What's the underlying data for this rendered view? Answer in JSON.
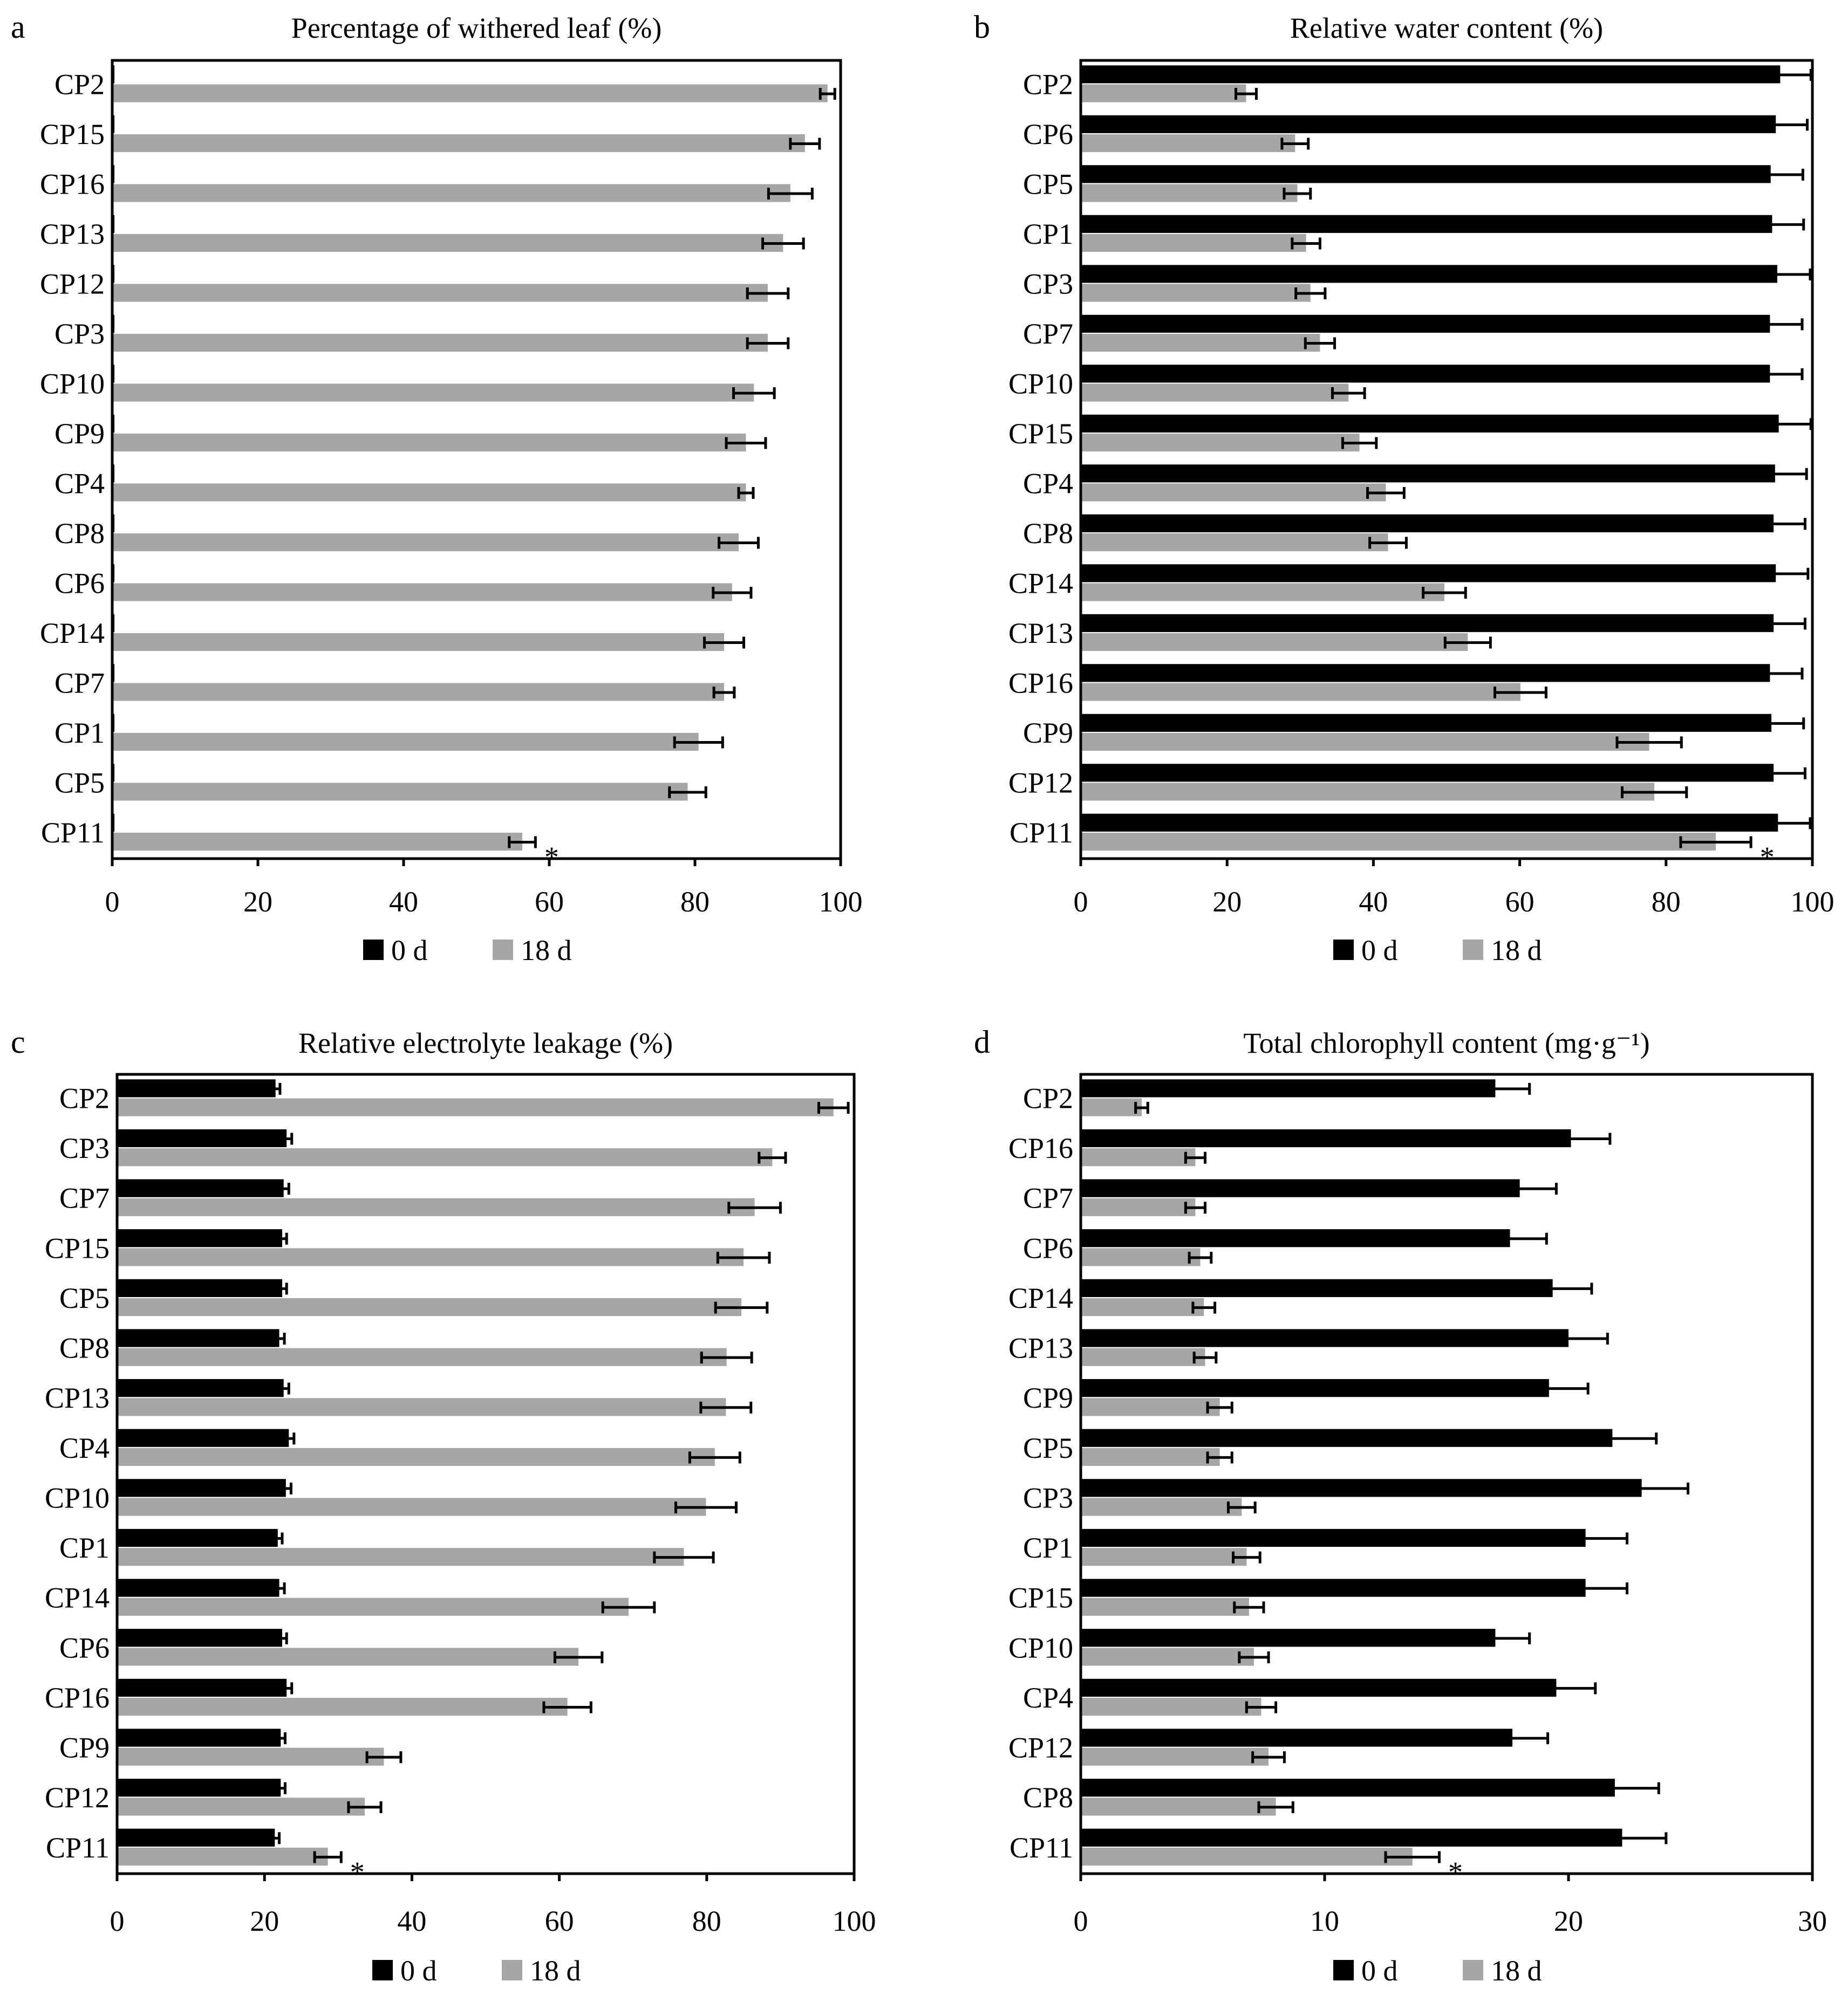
{
  "colors": {
    "day0": "#000000",
    "day18": "#a6a6a6"
  },
  "chart_data": [
    {
      "type": "bar",
      "orientation": "horizontal",
      "panel": "a",
      "title": "Percentage of withered leaf (%)",
      "xlim": [
        0,
        100
      ],
      "xticks": [
        0,
        20,
        40,
        60,
        80,
        100
      ],
      "legend": [
        "0 d",
        "18 d"
      ],
      "legend_position": "bottom",
      "categories": [
        "CP2",
        "CP15",
        "CP16",
        "CP13",
        "CP12",
        "CP3",
        "CP10",
        "CP9",
        "CP4",
        "CP8",
        "CP6",
        "CP14",
        "CP7",
        "CP1",
        "CP5",
        "CP11"
      ],
      "series": [
        {
          "name": "0 d",
          "values": [
            0.3,
            0.3,
            0.3,
            0.3,
            0.3,
            0.3,
            0.3,
            0.3,
            0.3,
            0.3,
            0.3,
            0.3,
            0.3,
            0.3,
            0.3,
            0.3
          ],
          "errors": [
            0,
            0,
            0,
            0,
            0,
            0,
            0,
            0,
            0,
            0,
            0,
            0,
            0,
            0,
            0,
            0
          ]
        },
        {
          "name": "18 d",
          "values": [
            98.2,
            95.1,
            93.1,
            92.1,
            90.0,
            90.0,
            88.1,
            87.0,
            87.0,
            86.0,
            85.1,
            84.0,
            84.0,
            80.5,
            79.0,
            56.3
          ],
          "errors": [
            1.0,
            2.0,
            3.0,
            2.8,
            2.8,
            2.8,
            2.8,
            2.7,
            1.0,
            2.7,
            2.6,
            2.7,
            1.4,
            3.3,
            2.5,
            1.8
          ]
        }
      ],
      "annotation": {
        "category": "CP11",
        "series": "18 d",
        "text": "*"
      }
    },
    {
      "type": "bar",
      "orientation": "horizontal",
      "panel": "b",
      "title": "Relative water content (%)",
      "xlim": [
        0,
        100
      ],
      "xticks": [
        0,
        20,
        40,
        60,
        80,
        100
      ],
      "legend": [
        "0 d",
        "18 d"
      ],
      "legend_position": "bottom",
      "categories": [
        "CP2",
        "CP6",
        "CP5",
        "CP1",
        "CP3",
        "CP7",
        "CP10",
        "CP15",
        "CP4",
        "CP8",
        "CP14",
        "CP13",
        "CP16",
        "CP9",
        "CP12",
        "CP11"
      ],
      "series": [
        {
          "name": "0 d",
          "values": [
            95.6,
            95.0,
            94.3,
            94.5,
            95.2,
            94.2,
            94.2,
            95.4,
            94.9,
            94.7,
            95.0,
            94.7,
            94.2,
            94.4,
            94.7,
            95.3
          ],
          "errors": [
            4.2,
            4.3,
            4.4,
            4.3,
            4.5,
            4.4,
            4.4,
            4.4,
            4.3,
            4.3,
            4.4,
            4.3,
            4.4,
            4.4,
            4.3,
            4.4
          ]
        },
        {
          "name": "18 d",
          "values": [
            22.6,
            29.3,
            29.6,
            30.8,
            31.4,
            32.7,
            36.6,
            38.1,
            41.7,
            42.0,
            49.7,
            52.9,
            60.1,
            77.7,
            78.4,
            86.8
          ],
          "errors": [
            1.4,
            1.8,
            1.8,
            1.9,
            2.0,
            2.0,
            2.2,
            2.3,
            2.5,
            2.5,
            2.9,
            3.1,
            3.5,
            4.4,
            4.4,
            4.8
          ]
        }
      ],
      "annotation": {
        "category": "CP11",
        "series": "18 d",
        "text": "*"
      }
    },
    {
      "type": "bar",
      "orientation": "horizontal",
      "panel": "c",
      "title": "Relative electrolyte leakage (%)",
      "xlim": [
        0,
        100
      ],
      "xticks": [
        0,
        20,
        40,
        60,
        80,
        100
      ],
      "legend": [
        "0 d",
        "18 d"
      ],
      "legend_position": "bottom",
      "categories": [
        "CP2",
        "CP3",
        "CP7",
        "CP15",
        "CP5",
        "CP8",
        "CP13",
        "CP4",
        "CP10",
        "CP1",
        "CP14",
        "CP6",
        "CP16",
        "CP9",
        "CP12",
        "CP11"
      ],
      "series": [
        {
          "name": "0 d",
          "values": [
            21.5,
            23.0,
            22.6,
            22.4,
            22.4,
            22.0,
            22.6,
            23.3,
            22.9,
            21.8,
            22.0,
            22.4,
            23.0,
            22.2,
            22.2,
            21.4
          ],
          "errors": [
            0.6,
            0.7,
            0.7,
            0.6,
            0.6,
            0.7,
            0.7,
            0.7,
            0.7,
            0.6,
            0.7,
            0.6,
            0.7,
            0.6,
            0.6,
            0.6
          ]
        },
        {
          "name": "18 d",
          "values": [
            97.2,
            88.9,
            86.5,
            85.0,
            84.7,
            82.7,
            82.6,
            81.1,
            79.9,
            76.9,
            69.4,
            62.6,
            61.1,
            36.2,
            33.6,
            28.6
          ],
          "errors": [
            2.0,
            1.8,
            3.5,
            3.5,
            3.5,
            3.4,
            3.4,
            3.4,
            4.1,
            4.0,
            3.5,
            3.2,
            3.2,
            2.3,
            2.2,
            1.8
          ]
        }
      ],
      "annotation": {
        "category": "CP11",
        "series": "18 d",
        "text": "*"
      }
    },
    {
      "type": "bar",
      "orientation": "horizontal",
      "panel": "d",
      "title": "Total chlorophyll content (mg·g⁻¹)",
      "xlim": [
        0,
        30
      ],
      "xticks": [
        0,
        10,
        20,
        30
      ],
      "legend": [
        "0 d",
        "18 d"
      ],
      "legend_position": "bottom",
      "categories": [
        "CP2",
        "CP16",
        "CP7",
        "CP6",
        "CP14",
        "CP13",
        "CP9",
        "CP5",
        "CP3",
        "CP1",
        "CP15",
        "CP10",
        "CP4",
        "CP12",
        "CP8",
        "CP11"
      ],
      "series": [
        {
          "name": "0 d",
          "values": [
            17.0,
            20.1,
            18.0,
            17.6,
            19.35,
            20.0,
            19.2,
            21.8,
            23.0,
            20.7,
            20.7,
            17.0,
            19.5,
            17.7,
            21.9,
            22.2
          ],
          "errors": [
            1.4,
            1.6,
            1.5,
            1.5,
            1.6,
            1.6,
            1.6,
            1.8,
            1.9,
            1.7,
            1.7,
            1.4,
            1.6,
            1.45,
            1.8,
            1.8
          ]
        },
        {
          "name": "18 d",
          "values": [
            2.5,
            4.7,
            4.7,
            4.9,
            5.05,
            5.1,
            5.7,
            5.7,
            6.6,
            6.8,
            6.9,
            7.1,
            7.4,
            7.7,
            8.0,
            13.6
          ],
          "errors": [
            0.25,
            0.4,
            0.4,
            0.45,
            0.45,
            0.45,
            0.5,
            0.5,
            0.55,
            0.55,
            0.6,
            0.6,
            0.6,
            0.65,
            0.7,
            1.1
          ]
        }
      ],
      "annotation": {
        "category": "CP11",
        "series": "18 d",
        "text": "*"
      }
    }
  ]
}
